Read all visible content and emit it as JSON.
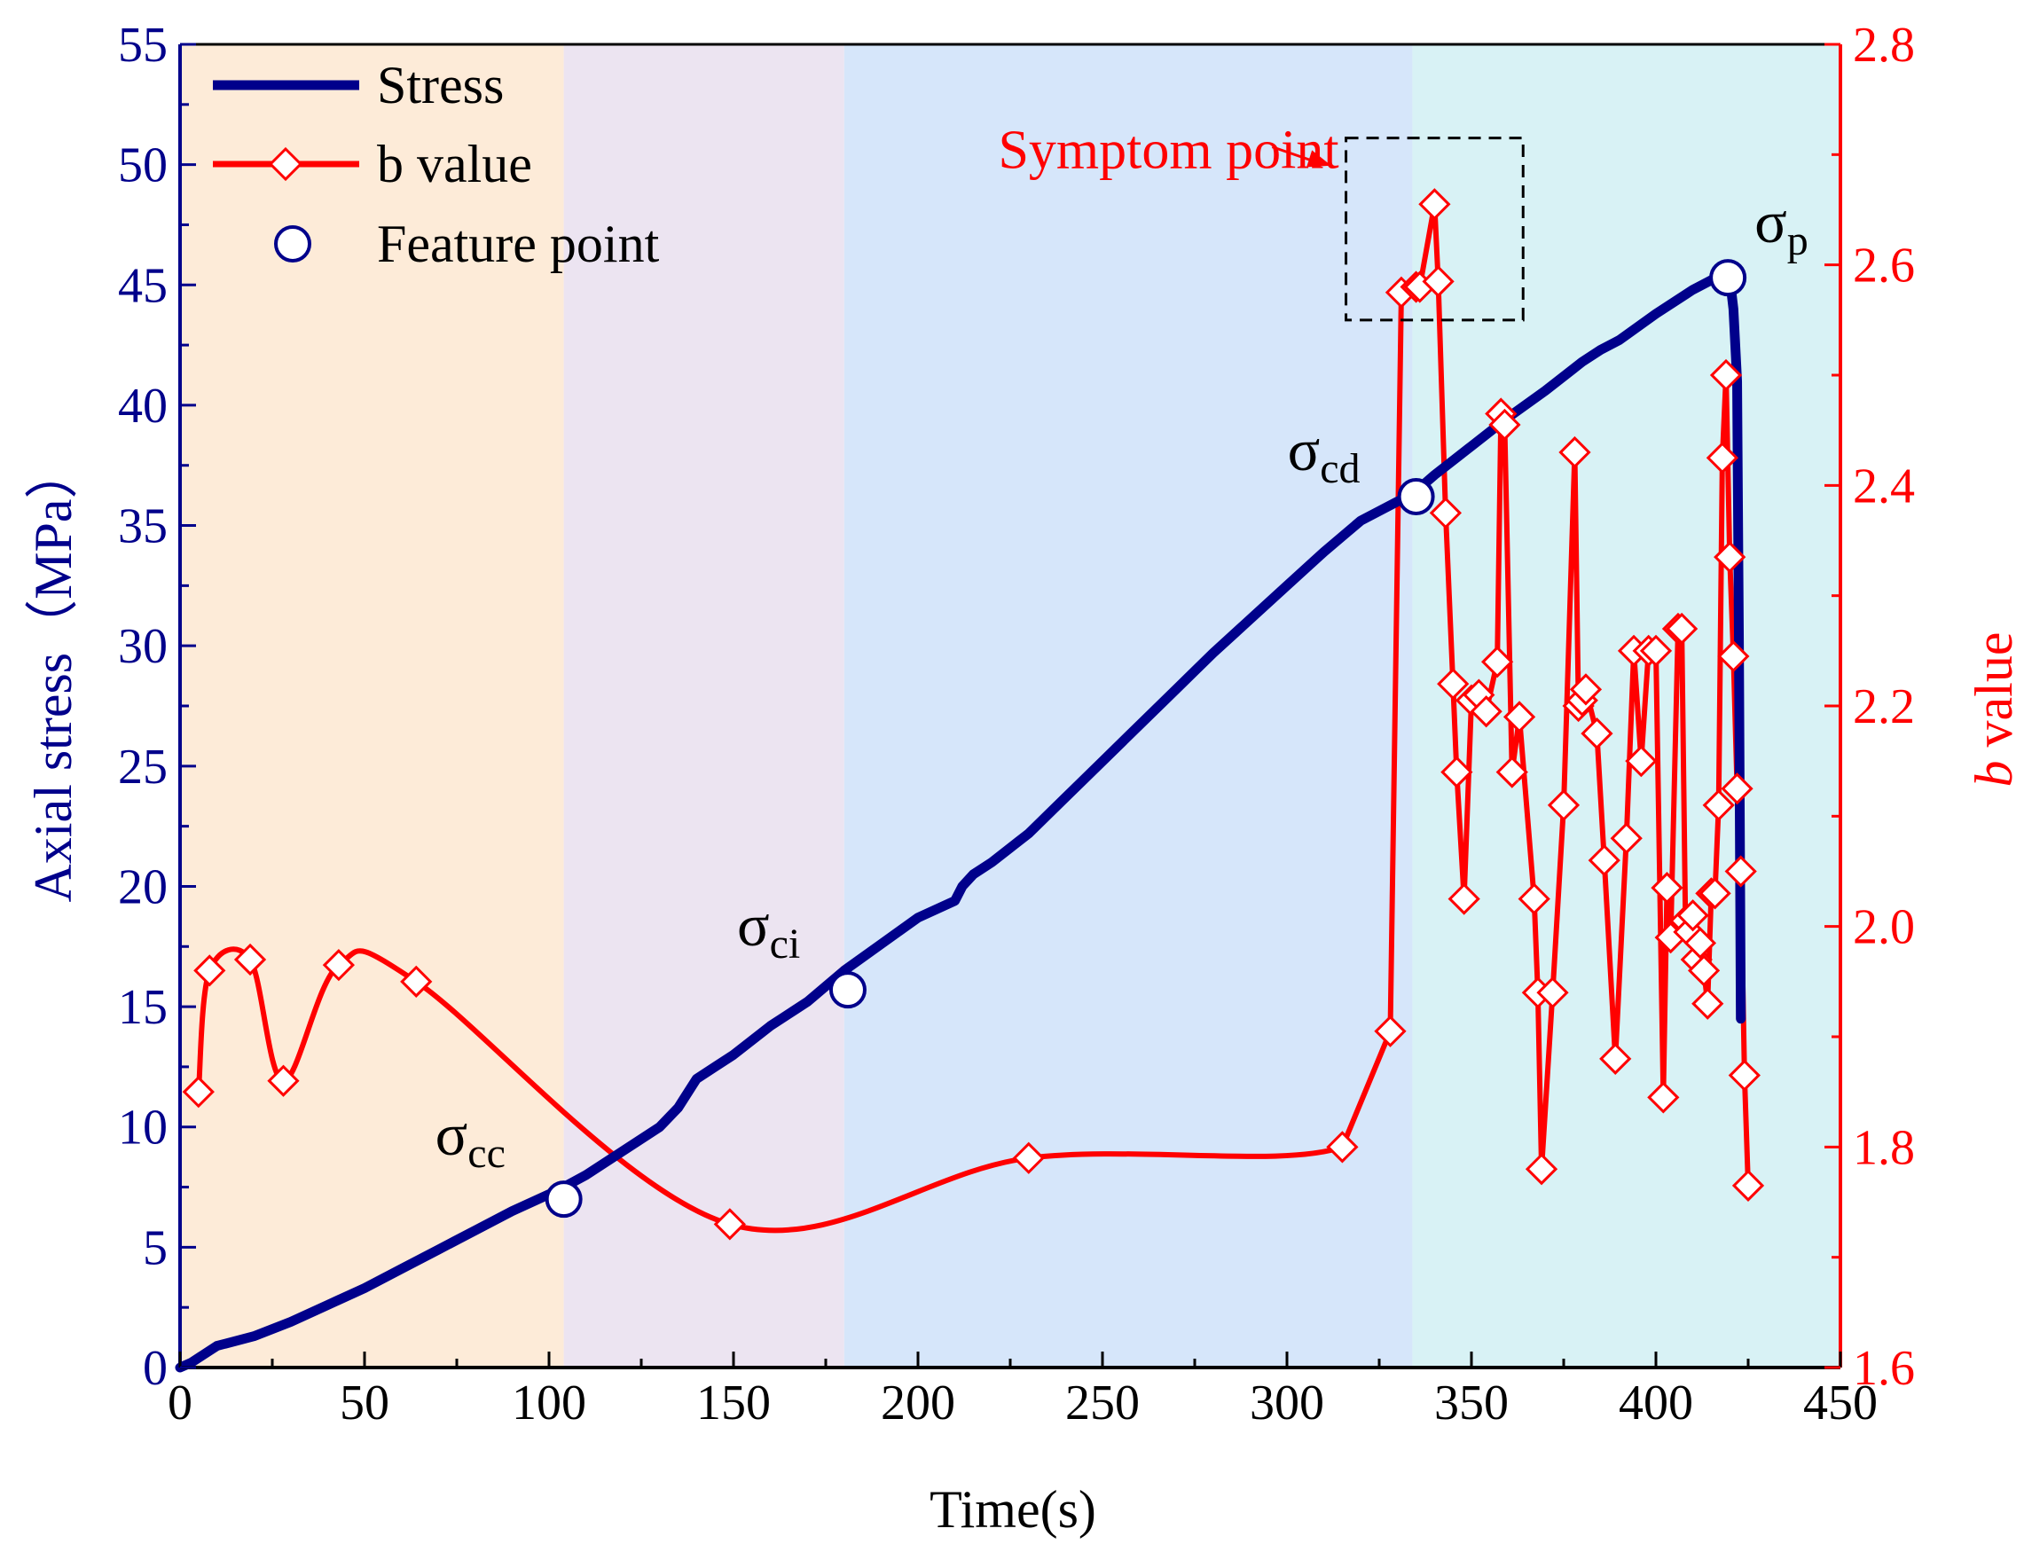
{
  "chart_data": {
    "type": "line",
    "xlabel": "Time(s)",
    "ylabel_left": "Axial stress（MPa）",
    "ylabel_right_italic": "b",
    "ylabel_right_rest": " value",
    "xlim": [
      0,
      450
    ],
    "ylim_left": [
      0,
      55
    ],
    "ylim_right": [
      1.6,
      2.8
    ],
    "x_ticks": [
      0,
      50,
      100,
      150,
      200,
      250,
      300,
      350,
      400,
      450
    ],
    "y_left_ticks": [
      0,
      5,
      10,
      15,
      20,
      25,
      30,
      35,
      40,
      45,
      50,
      55
    ],
    "y_right_ticks": [
      "1.6",
      "1.8",
      "2.0",
      "2.2",
      "2.4",
      "2.6",
      "2.8"
    ],
    "colors": {
      "stress": "#00008B",
      "b_value": "#FF0000",
      "left_axis": "#00008B",
      "right_axis": "#FF0000",
      "stage1": "#FDEBD8",
      "stage2": "#ECE4F1",
      "stage3": "#D6E6FA",
      "stage4": "#D8F2F5"
    },
    "stages": [
      {
        "x0": 0,
        "x1": 104
      },
      {
        "x0": 104,
        "x1": 180
      },
      {
        "x0": 180,
        "x1": 334
      },
      {
        "x0": 334,
        "x1": 450
      }
    ],
    "legend": {
      "stress": "Stress",
      "b_value": "b value",
      "feature": "Feature point"
    },
    "series": [
      {
        "name": "Stress",
        "axis": "left",
        "x": [
          0,
          3,
          6,
          10,
          20,
          30,
          40,
          50,
          60,
          70,
          80,
          90,
          100,
          104,
          110,
          120,
          130,
          135,
          140,
          145,
          150,
          160,
          170,
          180,
          190,
          200,
          210,
          212,
          215,
          220,
          230,
          240,
          250,
          260,
          270,
          280,
          290,
          300,
          310,
          320,
          330,
          334,
          340,
          350,
          360,
          370,
          380,
          385,
          390,
          400,
          410,
          415,
          418,
          420,
          421,
          422,
          422.5,
          423
        ],
        "y": [
          0,
          0.2,
          0.5,
          0.9,
          1.3,
          1.9,
          2.6,
          3.3,
          4.1,
          4.9,
          5.7,
          6.5,
          7.2,
          7.5,
          8.0,
          9.0,
          10.0,
          10.8,
          12.0,
          12.5,
          13.0,
          14.2,
          15.2,
          16.5,
          17.6,
          18.7,
          19.4,
          20.0,
          20.5,
          21.0,
          22.2,
          23.7,
          25.2,
          26.7,
          28.2,
          29.7,
          31.1,
          32.5,
          33.9,
          35.2,
          36.0,
          36.3,
          37.1,
          38.3,
          39.5,
          40.6,
          41.8,
          42.3,
          42.7,
          43.8,
          44.8,
          45.2,
          45.5,
          45.3,
          44.0,
          41.0,
          30.0,
          14.5
        ]
      },
      {
        "name": "b value",
        "axis": "right",
        "x": [
          5,
          8,
          19,
          28,
          43,
          64,
          149,
          230,
          315,
          328,
          331,
          335,
          336,
          340,
          341,
          343,
          345,
          346,
          348,
          350,
          352,
          354,
          357,
          358,
          359,
          361,
          363,
          367,
          368,
          369,
          372,
          375,
          378,
          379,
          380,
          381,
          384,
          386,
          389,
          392,
          394,
          396,
          398,
          400,
          402,
          403,
          404,
          406,
          407,
          408,
          409,
          410,
          411,
          412,
          413,
          414,
          415,
          416,
          417,
          418,
          419,
          420,
          421,
          422,
          423,
          424,
          425
        ],
        "y": [
          1.85,
          1.96,
          1.97,
          1.86,
          1.965,
          1.95,
          1.73,
          1.79,
          1.8,
          1.905,
          2.575,
          2.58,
          2.58,
          2.655,
          2.585,
          2.375,
          2.22,
          2.14,
          2.025,
          2.205,
          2.21,
          2.195,
          2.24,
          2.465,
          2.455,
          2.14,
          2.19,
          2.025,
          1.94,
          1.78,
          1.94,
          2.11,
          2.43,
          2.2,
          2.205,
          2.215,
          2.175,
          2.06,
          1.88,
          2.08,
          2.25,
          2.15,
          2.25,
          2.25,
          1.845,
          2.035,
          1.99,
          2.27,
          2.27,
          2.005,
          1.995,
          2.01,
          1.97,
          1.985,
          1.96,
          1.93,
          2.03,
          2.03,
          2.11,
          2.425,
          2.5,
          2.335,
          2.245,
          2.125,
          2.05,
          1.865,
          1.765
        ]
      }
    ],
    "feature_points": [
      {
        "x": 104,
        "y": 7.0
      },
      {
        "x": 181,
        "y": 15.7
      },
      {
        "x": 335,
        "y": 36.2
      },
      {
        "x": 419.5,
        "y": 45.3
      }
    ],
    "annotations": {
      "sigma": "σ",
      "cc": "cc",
      "ci": "ci",
      "cd": "cd",
      "p": "p",
      "symptom": "Symptom point"
    },
    "symptom_box": {
      "x0": 316,
      "x1": 364,
      "y0": 2.55,
      "y1": 2.715
    },
    "symptom_arrow": {
      "from": [
        296,
        2.707
      ],
      "to": [
        312,
        2.69
      ]
    }
  }
}
